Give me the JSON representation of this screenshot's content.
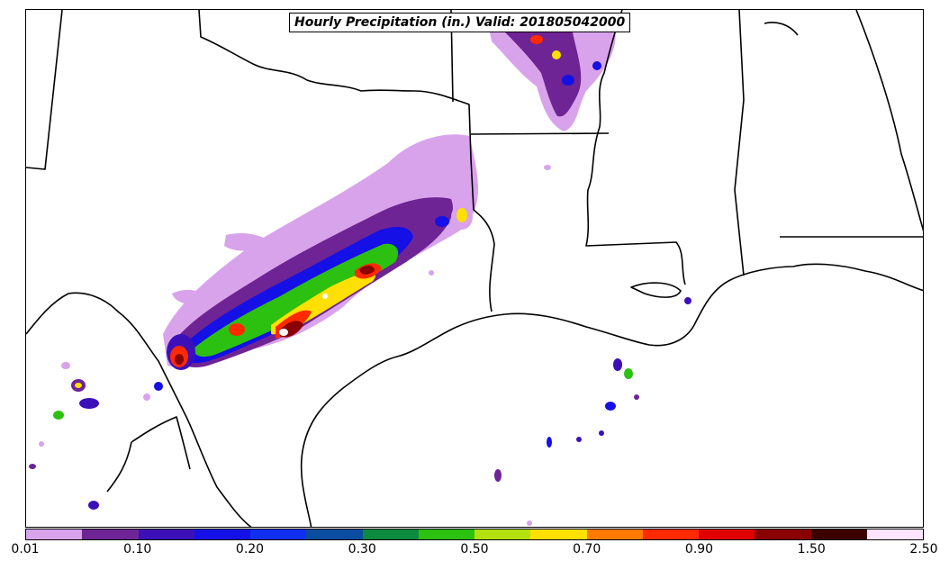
{
  "title": "Hourly Precipitation (in.) Valid: 201805042000",
  "colorbar": {
    "colors": [
      "#d9a3ec",
      "#6e2494",
      "#3c10b8",
      "#1410e6",
      "#1030f0",
      "#0a4ca0",
      "#0c8a40",
      "#2cc010",
      "#b4e010",
      "#ffe000",
      "#ff7a00",
      "#ff2a00",
      "#e00000",
      "#8a0000",
      "#3c0000",
      "#ffe4ff"
    ],
    "tick_labels": [
      "0.01",
      "0.10",
      "0.20",
      "0.30",
      "0.50",
      "0.70",
      "0.90",
      "1.50",
      "2.50"
    ]
  }
}
